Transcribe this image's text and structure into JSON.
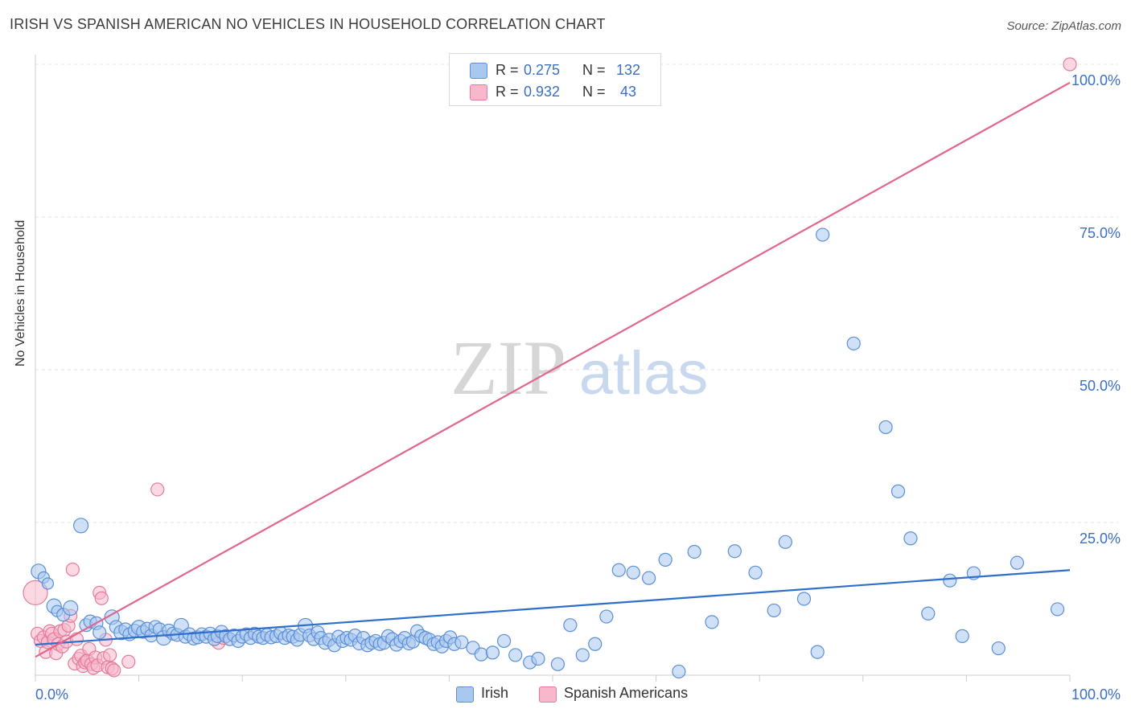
{
  "title": "IRISH VS SPANISH AMERICAN NO VEHICLES IN HOUSEHOLD CORRELATION CHART",
  "source": "Source: ZipAtlas.com",
  "watermark": {
    "zip": "ZIP",
    "atlas": "atlas"
  },
  "colors": {
    "irish_fill": "#a9c8f0",
    "irish_stroke": "#5b8fd6",
    "irish_line": "#2f6fcc",
    "spanish_fill": "#f7b8cb",
    "spanish_stroke": "#e47a9c",
    "spanish_line": "#e0668f",
    "axis_text": "#3b6fc4",
    "grid": "#e3e3e3"
  },
  "legend": {
    "rows": [
      {
        "r_label": "R =",
        "r_value": "0.275",
        "n_label": "N =",
        "n_value": "132"
      },
      {
        "r_label": "R =",
        "r_value": "0.932",
        "n_label": "N =",
        "n_value": "43"
      }
    ]
  },
  "bottom_legend": {
    "irish": "Irish",
    "spanish": "Spanish Americans"
  },
  "chart_data": {
    "type": "scatter",
    "title": "IRISH VS SPANISH AMERICAN NO VEHICLES IN HOUSEHOLD CORRELATION CHART",
    "xlabel": "",
    "ylabel": "No Vehicles in Household",
    "xlim": [
      0,
      100
    ],
    "ylim": [
      0,
      100
    ],
    "x_tick_labels": [
      {
        "value": 0,
        "label": "0.0%"
      },
      {
        "value": 100,
        "label": "100.0%"
      }
    ],
    "y_tick_labels": [
      {
        "value": 25,
        "label": "25.0%"
      },
      {
        "value": 50,
        "label": "50.0%"
      },
      {
        "value": 75,
        "label": "75.0%"
      },
      {
        "value": 100,
        "label": "100.0%"
      }
    ],
    "grid": true,
    "series": [
      {
        "name": "Irish",
        "r": 0.275,
        "n": 132,
        "trend": {
          "x": [
            0,
            100
          ],
          "y": [
            5.0,
            17.2
          ]
        },
        "points": [
          [
            0.3,
            17,
            9
          ],
          [
            0.8,
            16,
            7
          ],
          [
            1.2,
            15,
            7
          ],
          [
            1.8,
            11.3,
            9
          ],
          [
            2.1,
            10.5,
            7
          ],
          [
            2.7,
            9.9,
            8
          ],
          [
            3.4,
            11,
            9
          ],
          [
            4.4,
            24.5,
            9
          ],
          [
            4.9,
            8.2,
            8
          ],
          [
            5.3,
            8.8,
            8
          ],
          [
            5.9,
            8.5,
            8
          ],
          [
            6.2,
            7,
            8
          ],
          [
            7.4,
            9.5,
            9
          ],
          [
            7.8,
            7.9,
            8
          ],
          [
            8.3,
            7,
            9
          ],
          [
            8.7,
            7.5,
            8
          ],
          [
            9.1,
            6.7,
            8
          ],
          [
            9.6,
            7.3,
            8
          ],
          [
            10,
            7.8,
            9
          ],
          [
            10.4,
            7.1,
            8
          ],
          [
            10.8,
            7.6,
            8
          ],
          [
            11.2,
            6.5,
            8
          ],
          [
            11.6,
            7.9,
            8
          ],
          [
            12,
            7.5,
            8
          ],
          [
            12.4,
            6.1,
            9
          ],
          [
            12.9,
            7.3,
            8
          ],
          [
            13.3,
            6.8,
            8
          ],
          [
            13.7,
            6.6,
            8
          ],
          [
            14.1,
            8.1,
            9
          ],
          [
            14.5,
            6.3,
            8
          ],
          [
            14.9,
            6.7,
            8
          ],
          [
            15.3,
            6,
            8
          ],
          [
            15.7,
            6.2,
            8
          ],
          [
            16.1,
            6.7,
            8
          ],
          [
            16.5,
            6.3,
            8
          ],
          [
            16.9,
            6.8,
            8
          ],
          [
            17.3,
            5.9,
            8
          ],
          [
            17.6,
            6.4,
            8
          ],
          [
            18,
            7.1,
            8
          ],
          [
            18.4,
            6.4,
            8
          ],
          [
            18.8,
            5.9,
            8
          ],
          [
            19.2,
            6.5,
            8
          ],
          [
            19.6,
            5.6,
            8
          ],
          [
            20,
            6.3,
            8
          ],
          [
            20.4,
            6.7,
            8
          ],
          [
            20.8,
            6.1,
            8
          ],
          [
            21.2,
            6.8,
            8
          ],
          [
            21.6,
            6.3,
            8
          ],
          [
            22,
            6.1,
            8
          ],
          [
            22.4,
            6.6,
            8
          ],
          [
            22.8,
            6.2,
            8
          ],
          [
            23.3,
            6.4,
            8
          ],
          [
            23.7,
            6.9,
            8
          ],
          [
            24.1,
            6.1,
            8
          ],
          [
            24.5,
            6.5,
            8
          ],
          [
            24.9,
            6.3,
            8
          ],
          [
            25.3,
            5.8,
            8
          ],
          [
            25.6,
            6.6,
            8
          ],
          [
            26.1,
            8.1,
            9
          ],
          [
            26.5,
            6.5,
            8
          ],
          [
            26.9,
            5.9,
            8
          ],
          [
            27.3,
            7,
            8
          ],
          [
            27.6,
            6.1,
            8
          ],
          [
            28,
            5.3,
            8
          ],
          [
            28.4,
            5.8,
            8
          ],
          [
            28.9,
            4.9,
            8
          ],
          [
            29.3,
            6.3,
            8
          ],
          [
            29.7,
            5.6,
            8
          ],
          [
            30.1,
            6.1,
            8
          ],
          [
            30.5,
            5.8,
            8
          ],
          [
            30.9,
            6.5,
            8
          ],
          [
            31.3,
            5.2,
            8
          ],
          [
            31.7,
            6.1,
            8
          ],
          [
            32.1,
            4.9,
            8
          ],
          [
            32.5,
            5.3,
            8
          ],
          [
            32.9,
            5.6,
            8
          ],
          [
            33.3,
            5.1,
            8
          ],
          [
            33.7,
            5.3,
            8
          ],
          [
            34.1,
            6.4,
            8
          ],
          [
            34.5,
            5.9,
            8
          ],
          [
            34.9,
            5,
            8
          ],
          [
            35.3,
            5.6,
            8
          ],
          [
            35.7,
            6.1,
            8
          ],
          [
            36.1,
            5.2,
            8
          ],
          [
            36.5,
            5.5,
            8
          ],
          [
            36.9,
            7.2,
            8
          ],
          [
            37.3,
            6.4,
            8
          ],
          [
            37.7,
            6.1,
            8
          ],
          [
            38.1,
            5.8,
            8
          ],
          [
            38.5,
            5.1,
            8
          ],
          [
            38.9,
            5.4,
            8
          ],
          [
            39.3,
            4.7,
            8
          ],
          [
            39.7,
            5.6,
            8
          ],
          [
            40.1,
            6.2,
            8
          ],
          [
            40.5,
            5.1,
            8
          ],
          [
            41.2,
            5.4,
            8
          ],
          [
            42.3,
            4.5,
            8
          ],
          [
            43.1,
            3.4,
            8
          ],
          [
            44.2,
            3.7,
            8
          ],
          [
            45.3,
            5.6,
            8
          ],
          [
            46.4,
            3.3,
            8
          ],
          [
            47.8,
            2.1,
            8
          ],
          [
            48.6,
            2.7,
            8
          ],
          [
            50.5,
            1.8,
            8
          ],
          [
            51.7,
            8.2,
            8
          ],
          [
            52.9,
            3.3,
            8
          ],
          [
            54.1,
            5.1,
            8
          ],
          [
            55.2,
            9.6,
            8
          ],
          [
            56.4,
            17.2,
            8
          ],
          [
            57.8,
            16.8,
            8
          ],
          [
            59.3,
            15.9,
            8
          ],
          [
            60.9,
            18.9,
            8
          ],
          [
            62.2,
            0.6,
            8
          ],
          [
            63.7,
            20.2,
            8
          ],
          [
            65.4,
            8.7,
            8
          ],
          [
            67.6,
            20.3,
            8
          ],
          [
            69.6,
            16.8,
            8
          ],
          [
            71.4,
            10.6,
            8
          ],
          [
            72.5,
            21.8,
            8
          ],
          [
            74.3,
            12.5,
            8
          ],
          [
            75.6,
            3.8,
            8
          ],
          [
            76.1,
            72.1,
            8
          ],
          [
            79.1,
            54.3,
            8
          ],
          [
            82.2,
            40.6,
            8
          ],
          [
            83.4,
            30.1,
            8
          ],
          [
            84.6,
            22.4,
            8
          ],
          [
            86.3,
            10.1,
            8
          ],
          [
            88.4,
            15.5,
            8
          ],
          [
            89.6,
            6.4,
            8
          ],
          [
            90.7,
            16.7,
            8
          ],
          [
            93.1,
            4.4,
            8
          ],
          [
            94.9,
            18.4,
            8
          ],
          [
            98.8,
            10.8,
            8
          ]
        ]
      },
      {
        "name": "Spanish Americans",
        "r": 0.932,
        "n": 43,
        "trend": {
          "x": [
            0,
            100
          ],
          "y": [
            3.0,
            97.0
          ]
        },
        "points": [
          [
            0,
            13.5,
            15
          ],
          [
            0.2,
            6.8,
            8
          ],
          [
            0.5,
            5.6,
            8
          ],
          [
            0.8,
            6.2,
            8
          ],
          [
            1,
            3.8,
            8
          ],
          [
            1.2,
            5.4,
            8
          ],
          [
            1.4,
            7.2,
            8
          ],
          [
            1.6,
            6.8,
            8
          ],
          [
            1.8,
            5.9,
            8
          ],
          [
            2,
            3.6,
            8
          ],
          [
            2.2,
            5.1,
            8
          ],
          [
            2.4,
            7.2,
            8
          ],
          [
            2.6,
            4.7,
            8
          ],
          [
            2.8,
            7.4,
            8
          ],
          [
            3,
            5.5,
            8
          ],
          [
            3.2,
            8.1,
            8
          ],
          [
            3.4,
            9.7,
            8
          ],
          [
            3.6,
            17.3,
            8
          ],
          [
            3.8,
            1.9,
            8
          ],
          [
            4,
            5.9,
            8
          ],
          [
            4.2,
            2.7,
            8
          ],
          [
            4.4,
            3.2,
            8
          ],
          [
            4.6,
            1.5,
            8
          ],
          [
            4.8,
            2.1,
            8
          ],
          [
            5,
            2.4,
            8
          ],
          [
            5.2,
            4.3,
            8
          ],
          [
            5.4,
            1.8,
            8
          ],
          [
            5.6,
            1.2,
            8
          ],
          [
            5.8,
            2.9,
            8
          ],
          [
            6,
            1.6,
            8
          ],
          [
            6.2,
            13.5,
            8
          ],
          [
            6.4,
            12.6,
            8
          ],
          [
            6.6,
            2.8,
            8
          ],
          [
            6.8,
            5.8,
            8
          ],
          [
            7,
            1.3,
            8
          ],
          [
            7.2,
            3.3,
            8
          ],
          [
            7.4,
            1.1,
            8
          ],
          [
            7.6,
            0.8,
            8
          ],
          [
            9,
            2.2,
            8
          ],
          [
            11.8,
            30.4,
            8
          ],
          [
            17.7,
            5.3,
            8
          ],
          [
            18.2,
            6.1,
            8
          ],
          [
            100,
            100,
            8
          ]
        ]
      }
    ]
  }
}
